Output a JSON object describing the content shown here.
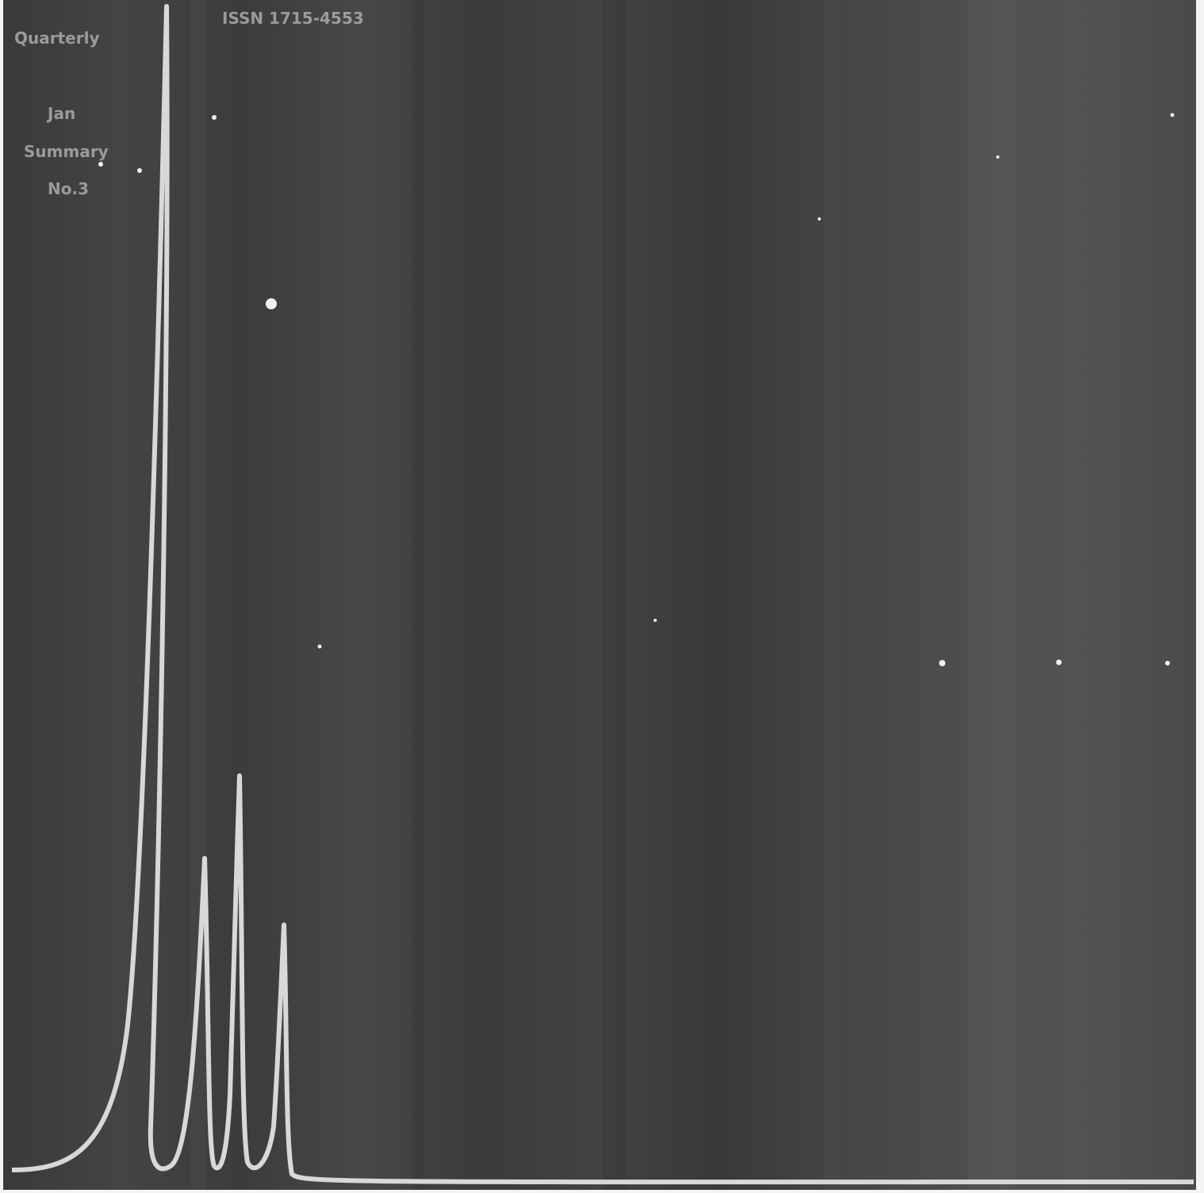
{
  "header": {
    "code": "ISSN 1715-4553"
  },
  "side_labels": [
    "Quarterly",
    "Jan",
    "Summary",
    "No.3"
  ]
}
